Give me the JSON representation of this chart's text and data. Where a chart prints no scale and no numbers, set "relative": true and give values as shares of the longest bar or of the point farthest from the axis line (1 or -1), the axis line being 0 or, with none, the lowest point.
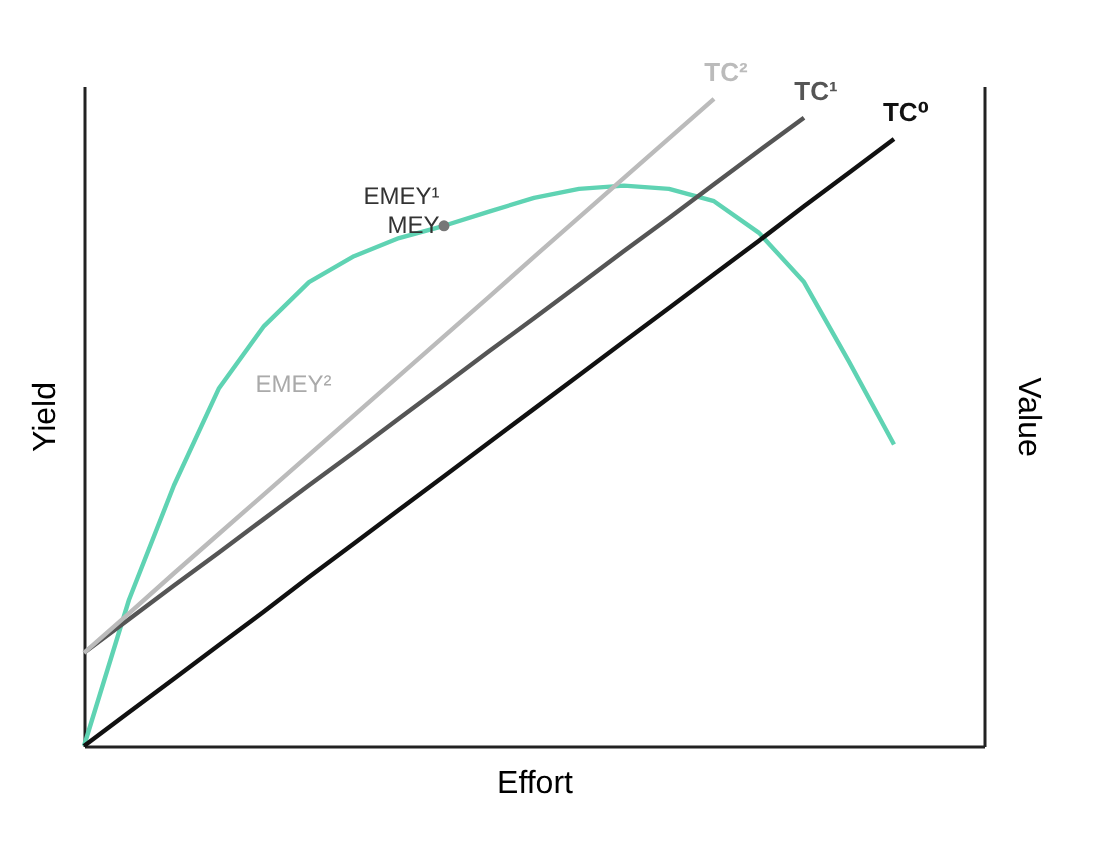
{
  "chart_data": {
    "type": "line",
    "relative": true,
    "xlabel": "Effort",
    "ylabel": "Yield",
    "y2label": "Value",
    "tick_labels": false,
    "grid": false,
    "marker": "none",
    "categories": [
      null,
      null,
      null,
      null,
      null,
      null,
      null,
      null,
      null,
      null,
      null,
      null,
      null,
      null,
      null,
      null,
      null,
      null,
      null,
      null,
      null
    ],
    "series": [
      {
        "color": "#5fd3b3",
        "values": [
          0,
          0.226,
          0.403,
          0.553,
          0.649,
          0.717,
          0.757,
          0.785,
          0.804,
          0.826,
          0.847,
          0.861,
          0.866,
          0.861,
          0.842,
          0.793,
          0.717,
          0.594,
          0.466,
          null,
          null
        ]
      },
      {
        "name": "TC⁰",
        "color": "#111111",
        "values": [
          0,
          0.052,
          0.104,
          0.156,
          0.208,
          0.261,
          0.313,
          0.365,
          0.417,
          0.469,
          0.521,
          0.573,
          0.625,
          0.677,
          0.729,
          0.781,
          0.834,
          0.886,
          0.938,
          null,
          null
        ]
      },
      {
        "name": "TC¹",
        "color": "#555555",
        "values": [
          0.144,
          0.196,
          0.248,
          0.299,
          0.351,
          0.403,
          0.454,
          0.506,
          0.558,
          0.61,
          0.661,
          0.713,
          0.765,
          0.816,
          0.868,
          0.92,
          0.971,
          null,
          null,
          null,
          null
        ]
      },
      {
        "name": "TC²",
        "color": "#bbbbbb",
        "values": [
          0.144,
          0.205,
          0.267,
          0.328,
          0.389,
          0.45,
          0.511,
          0.572,
          0.633,
          0.694,
          0.756,
          0.817,
          0.878,
          0.939,
          1.0,
          null,
          null,
          null,
          null,
          null,
          null
        ]
      },
      {
        "marker": "circle",
        "color": "#777777",
        "values": [
          null,
          null,
          null,
          null,
          null,
          null,
          null,
          null,
          0.804,
          null,
          null,
          null,
          null,
          null,
          null,
          null,
          null,
          null,
          null,
          null,
          null
        ]
      }
    ],
    "annotations": [
      "EMEY¹",
      "MEY",
      "EMEY²"
    ]
  }
}
